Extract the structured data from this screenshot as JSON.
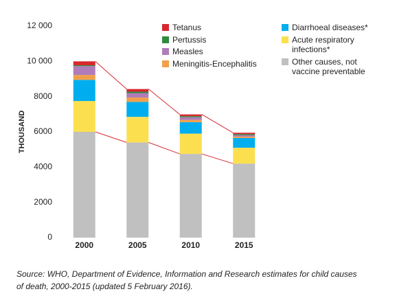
{
  "chart_data": {
    "type": "stacked_bar",
    "y_label": "THOUSAND",
    "categories": [
      "2000",
      "2005",
      "2010",
      "2015"
    ],
    "series": [
      {
        "name": "Other causes, not vaccine preventable",
        "color": "#c0c0c0",
        "values": [
          6000,
          5400,
          4750,
          4200
        ]
      },
      {
        "name": "Acute respiratory infections*",
        "color": "#fcdf4f",
        "values": [
          1750,
          1450,
          1150,
          900
        ]
      },
      {
        "name": "Diarrhoeal diseases*",
        "color": "#00aeef",
        "values": [
          1200,
          850,
          650,
          550
        ]
      },
      {
        "name": "Meningitis-Encephalitis",
        "color": "#f0a04b",
        "values": [
          280,
          250,
          130,
          80
        ]
      },
      {
        "name": "Measles",
        "color": "#b07cba",
        "values": [
          500,
          250,
          150,
          80
        ]
      },
      {
        "name": "Pertussis",
        "color": "#2e8b3e",
        "values": [
          50,
          80,
          60,
          60
        ]
      },
      {
        "name": "Tetanus",
        "color": "#d7282f",
        "values": [
          220,
          150,
          100,
          80
        ]
      }
    ],
    "ylim": [
      0,
      12000
    ],
    "yticks": [
      0,
      2000,
      4000,
      6000,
      8000,
      {
        "value": 10000,
        "label": "10 000"
      },
      {
        "value": 12000,
        "label": "12 000"
      }
    ],
    "connector_color": "#d7282f",
    "source": "Source: WHO, Department of Evidence, Information and Research estimates for child causes of death, 2000-2015 (updated 5 February 2016)."
  }
}
